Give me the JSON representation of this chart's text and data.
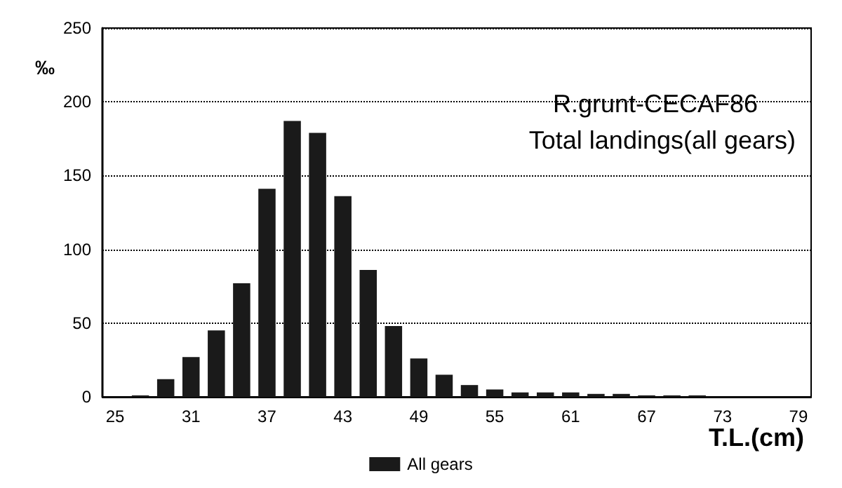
{
  "chart_data": {
    "type": "histogram",
    "title": "R.grunt-CECAF86",
    "subtitle": "Total landings(all gears)",
    "xlabel": "T.L.(cm)",
    "ylabel": "‰",
    "bins": [
      26,
      28,
      30,
      32,
      34,
      36,
      38,
      40,
      42,
      44,
      46,
      48,
      50,
      52,
      54,
      56,
      58,
      60,
      62,
      64,
      66,
      68,
      70,
      72
    ],
    "series": [
      {
        "name": "All gears",
        "color": "#1a1a1a",
        "values": [
          1,
          12,
          27,
          45,
          77,
          141,
          187,
          179,
          136,
          86,
          48,
          26,
          15,
          8,
          5,
          3,
          3,
          3,
          2,
          2,
          1,
          1,
          1
        ]
      }
    ],
    "xlim": [
      24,
      80
    ],
    "xticks": [
      25,
      31,
      37,
      43,
      49,
      55,
      61,
      67,
      73,
      79
    ],
    "ylim": [
      0,
      250
    ],
    "yticks": [
      0,
      50,
      100,
      150,
      200,
      250
    ],
    "grid": "y",
    "legend": "bottom"
  }
}
